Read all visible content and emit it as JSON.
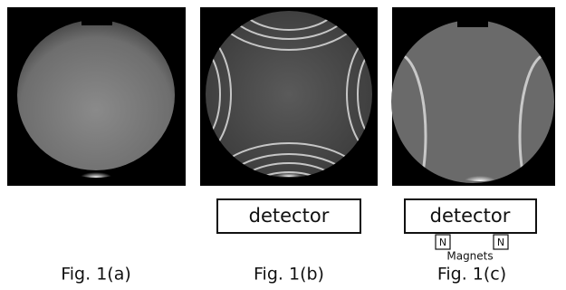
{
  "panels": [
    {
      "caption": "Fig. 1(a)"
    },
    {
      "caption": "Fig. 1(b)",
      "detector": "detector"
    },
    {
      "caption": "Fig. 1(c)",
      "detector": "detector",
      "magnets": {
        "poles": [
          "N",
          "N"
        ],
        "label": "Magnets"
      }
    }
  ]
}
